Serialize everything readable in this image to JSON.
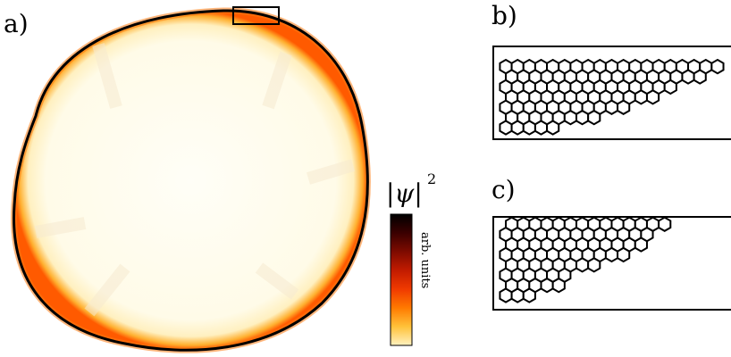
{
  "panels": {
    "a": {
      "label": "a)"
    },
    "b": {
      "label": "b)",
      "rows": [
        5,
        8,
        11,
        13,
        15,
        17,
        19
      ]
    },
    "c": {
      "label": "c)",
      "rows": [
        3,
        5,
        6,
        8,
        11,
        12,
        13,
        14
      ]
    }
  },
  "colorbar": {
    "symbol": "|ψ|",
    "exponent": "2",
    "units": "arb. units",
    "colors": [
      "#000000",
      "#3a0000",
      "#7e0b00",
      "#c21b00",
      "#f03a00",
      "#ff7a00",
      "#ffc23a",
      "#fff2c0"
    ]
  },
  "colors": {
    "fill_center": "#fffdf2",
    "fill_edge": "#ff5a00",
    "outline": "#000000"
  }
}
